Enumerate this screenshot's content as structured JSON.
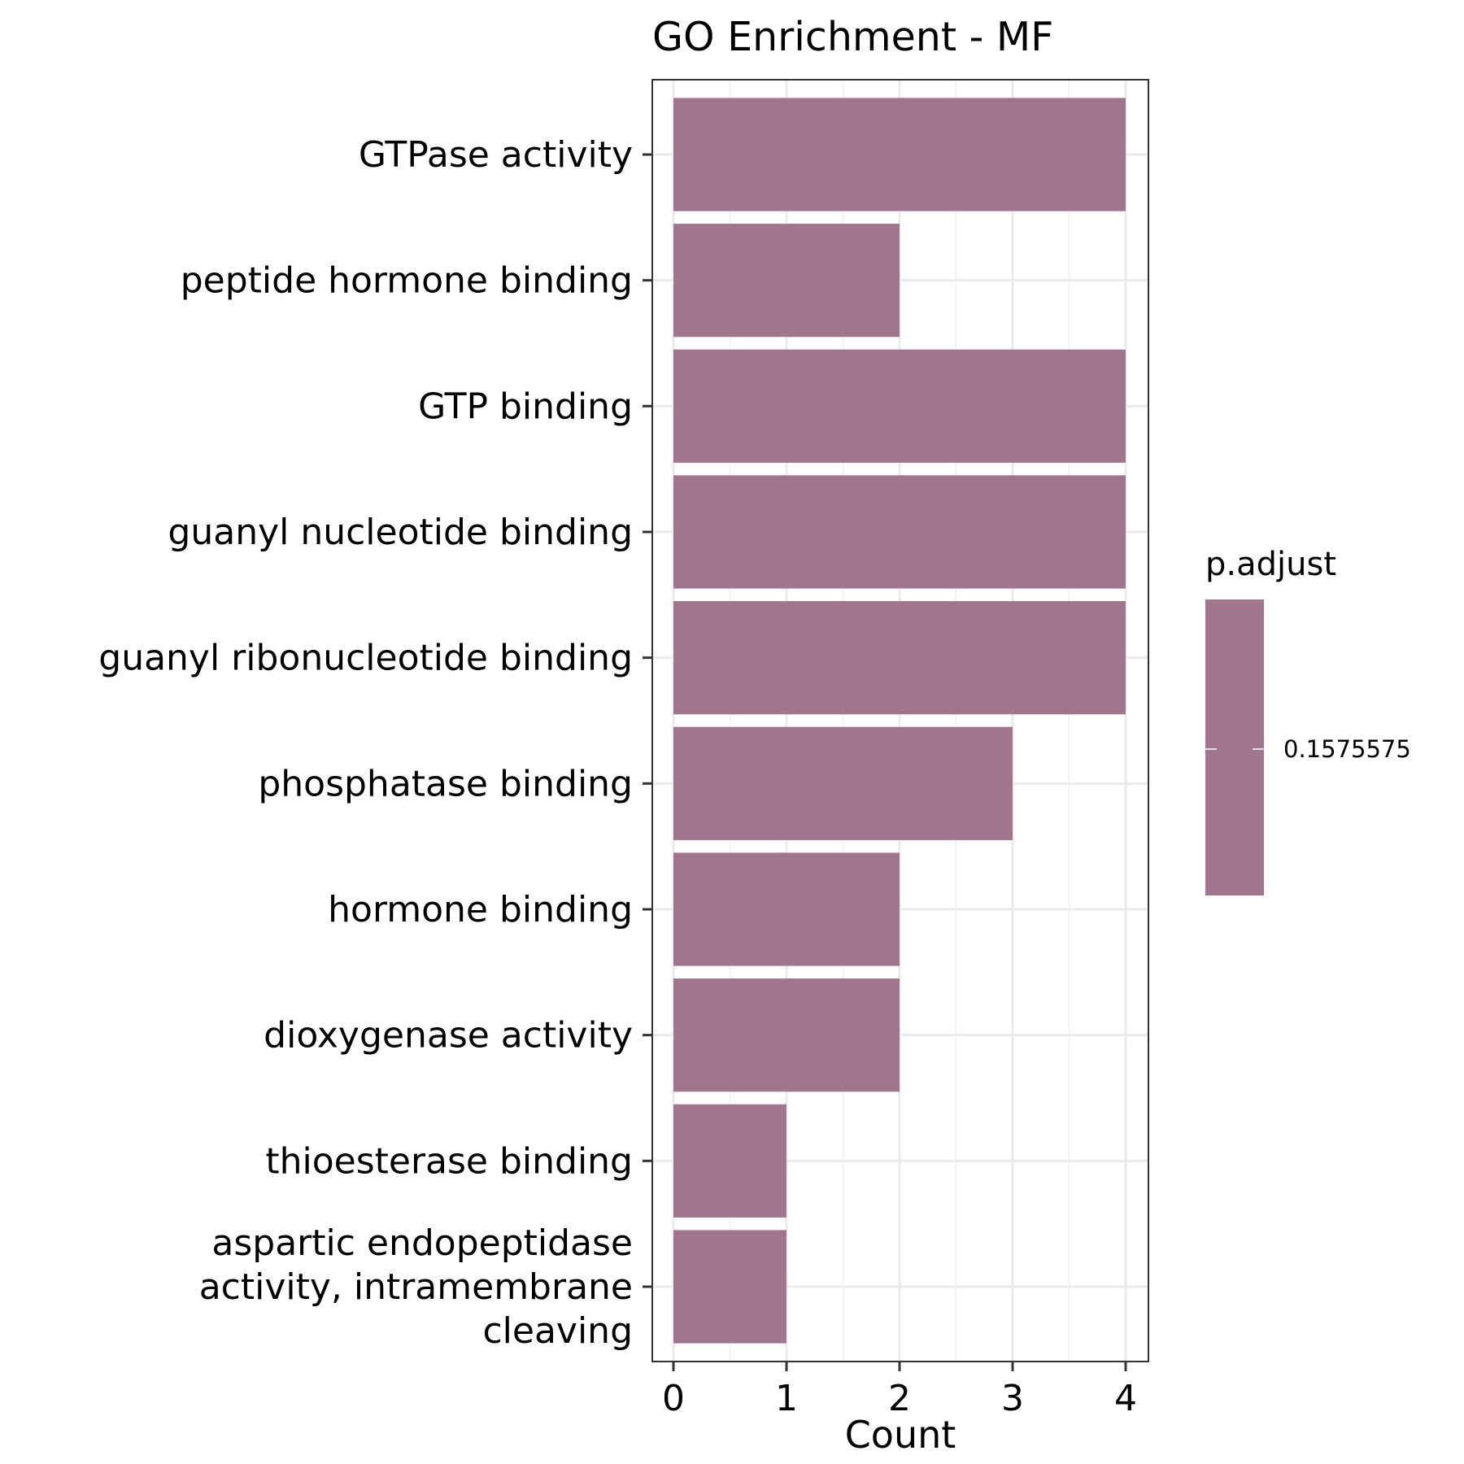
{
  "chart_data": {
    "type": "bar",
    "orientation": "horizontal",
    "title": "GO Enrichment - MF",
    "xlabel": "Count",
    "ylabel": "",
    "xlim": [
      0,
      4
    ],
    "xticks": [
      "0",
      "1",
      "2",
      "3",
      "4"
    ],
    "grid": true,
    "bar_color": "#a0768c",
    "categories": [
      "GTPase activity",
      "peptide hormone binding",
      "GTP binding",
      "guanyl nucleotide binding",
      "guanyl ribonucleotide binding",
      "phosphatase binding",
      "hormone binding",
      "dioxygenase activity",
      "thioesterase binding",
      "aspartic endopeptidase activity, intramembrane cleaving"
    ],
    "category_lines": [
      [
        "GTPase activity"
      ],
      [
        "peptide hormone binding"
      ],
      [
        "GTP binding"
      ],
      [
        "guanyl nucleotide binding"
      ],
      [
        "guanyl ribonucleotide binding"
      ],
      [
        "phosphatase binding"
      ],
      [
        "hormone binding"
      ],
      [
        "dioxygenase activity"
      ],
      [
        "thioesterase binding"
      ],
      [
        "aspartic endopeptidase",
        "activity, intramembrane",
        "cleaving"
      ]
    ],
    "values": [
      4,
      2,
      4,
      4,
      4,
      3,
      2,
      2,
      1,
      1
    ],
    "legend": {
      "title": "p.adjust",
      "label": "0.1575575",
      "placement": "right",
      "color": "#a0768c"
    }
  }
}
